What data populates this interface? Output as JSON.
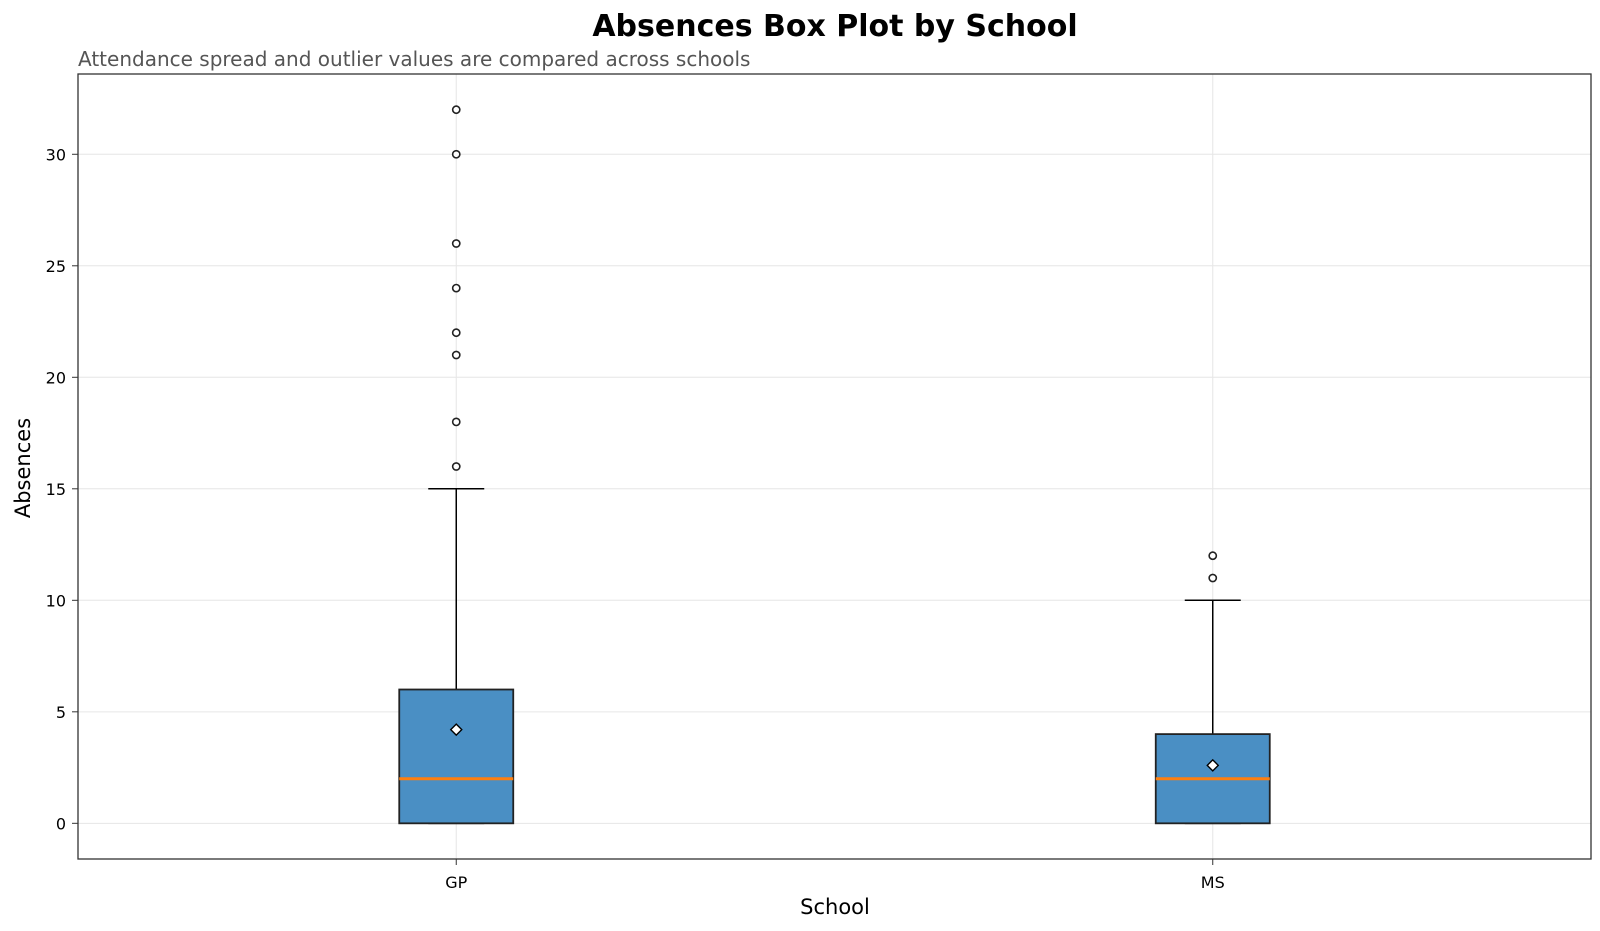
{
  "chart_data": {
    "type": "boxplot",
    "title": "Absences Box Plot by School",
    "subtitle": "Attendance spread and outlier values are compared across schools",
    "xlabel": "School",
    "ylabel": "Absences",
    "ylim": [
      -1.6,
      33.6
    ],
    "yticks": [
      "0",
      "5",
      "10",
      "15",
      "20",
      "25",
      "30"
    ],
    "grid": true,
    "categories": [
      "GP",
      "MS"
    ],
    "boxes": [
      {
        "category": "GP",
        "whisker_low": 0,
        "q1": 0,
        "median": 2,
        "q3": 6,
        "whisker_high": 15,
        "mean": 4.2,
        "outliers": [
          16,
          18,
          21,
          22,
          24,
          26,
          30,
          32
        ]
      },
      {
        "category": "MS",
        "whisker_low": 0,
        "q1": 0,
        "median": 2,
        "q3": 4,
        "whisker_high": 10,
        "mean": 2.6,
        "outliers": [
          11,
          12
        ]
      }
    ],
    "colors": {
      "box_fill": "#4a8fc4",
      "median": "#ff7f0e",
      "grid": "#e6e6e6",
      "frame": "#333333"
    }
  }
}
